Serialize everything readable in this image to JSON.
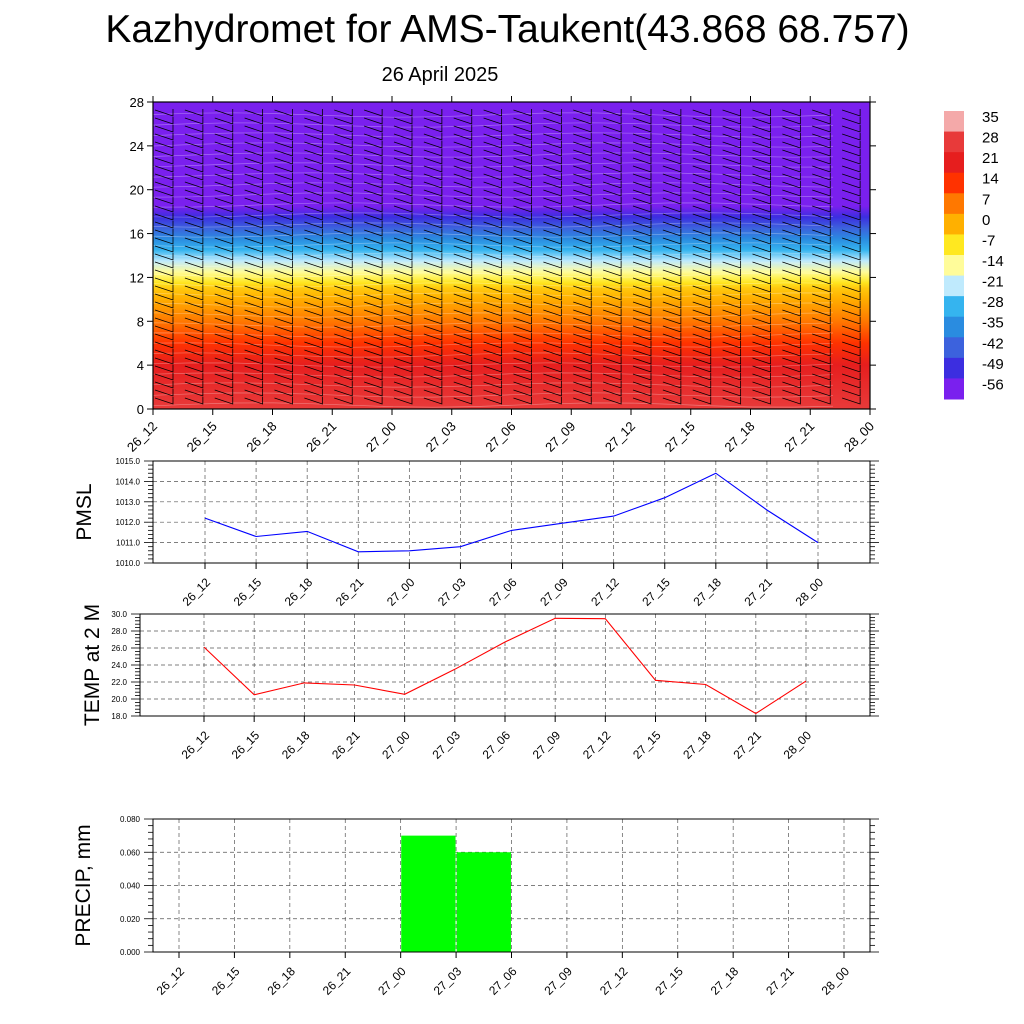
{
  "title": "Kazhydromet for AMS-Taukent(43.868 68.757)",
  "subtitle": "26 April 2025",
  "chart_data": [
    {
      "type": "heatmap",
      "description_of_axes": "time vs height",
      "x_tick_labels": [
        "26_12",
        "26_15",
        "26_18",
        "26_21",
        "27_00",
        "27_03",
        "27_06",
        "27_09",
        "27_12",
        "27_15",
        "27_18",
        "27_21",
        "28_00"
      ],
      "y_tick_labels": [
        "0",
        "4",
        "8",
        "12",
        "16",
        "20",
        "24",
        "28"
      ],
      "ylim": [
        0,
        28
      ],
      "colorbar_labels": [
        "35",
        "28",
        "21",
        "14",
        "7",
        "0",
        "-7",
        "-14",
        "-21",
        "-28",
        "-35",
        "-42",
        "-49",
        "-56"
      ],
      "colorbar_colors": [
        "#f4a9a9",
        "#e83a3a",
        "#e61e1e",
        "#ff3200",
        "#ff7800",
        "#ffb000",
        "#ffe820",
        "#fffc9a",
        "#bfeafd",
        "#35b4ef",
        "#2a8ce0",
        "#3c62dd",
        "#3c2ee0",
        "#7a20ee"
      ],
      "value_profile": [
        {
          "h": 0,
          "v": 28
        },
        {
          "h": 4,
          "v": 21
        },
        {
          "h": 8,
          "v": 7
        },
        {
          "h": 11,
          "v": -3
        },
        {
          "h": 12.5,
          "v": -14
        },
        {
          "h": 14.5,
          "v": -28
        },
        {
          "h": 16.5,
          "v": -42
        },
        {
          "h": 18.5,
          "v": -56
        },
        {
          "h": 21,
          "v": -56
        },
        {
          "h": 23,
          "v": -56
        },
        {
          "h": 28,
          "v": -60
        }
      ]
    },
    {
      "type": "line",
      "ylabel": "PMSL",
      "categories": [
        "26_12",
        "26_15",
        "26_18",
        "26_21",
        "27_00",
        "27_03",
        "27_06",
        "27_09",
        "27_12",
        "27_15",
        "27_18",
        "27_21",
        "28_00"
      ],
      "values": [
        1012.2,
        1011.3,
        1011.55,
        1010.55,
        1010.6,
        1010.8,
        1011.6,
        1011.95,
        1012.3,
        1013.2,
        1014.4,
        1012.6,
        1011.0
      ],
      "ylim": [
        1010.0,
        1015.0
      ],
      "y_tick_labels": [
        "1010.0",
        "1011.0",
        "1012.0",
        "1013.0",
        "1014.0",
        "1015.0"
      ],
      "color": "#0000ff",
      "grid": true
    },
    {
      "type": "line",
      "ylabel": "TEMP at 2 M",
      "categories": [
        "26_12",
        "26_15",
        "26_18",
        "26_21",
        "27_00",
        "27_03",
        "27_06",
        "27_09",
        "27_12",
        "27_15",
        "27_18",
        "27_21",
        "28_00"
      ],
      "values": [
        26.1,
        20.5,
        21.9,
        21.65,
        20.55,
        23.5,
        26.7,
        29.5,
        29.45,
        22.2,
        21.7,
        18.3,
        22.1
      ],
      "ylim": [
        18.0,
        30.0
      ],
      "y_tick_labels": [
        "18.0",
        "20.0",
        "22.0",
        "24.0",
        "26.0",
        "28.0",
        "30.0"
      ],
      "color": "#ff0000",
      "grid": true
    },
    {
      "type": "bar",
      "ylabel": "PRECIP, mm",
      "categories": [
        "26_12",
        "26_15",
        "26_18",
        "26_21",
        "27_00",
        "27_03",
        "27_06",
        "27_09",
        "27_12",
        "27_15",
        "27_18",
        "27_21",
        "28_00"
      ],
      "values": [
        0,
        0,
        0,
        0,
        0.07,
        0.06,
        0,
        0,
        0,
        0,
        0,
        0,
        0
      ],
      "ylim": [
        0.0,
        0.08
      ],
      "y_tick_labels": [
        "0.000",
        "0.020",
        "0.040",
        "0.060",
        "0.080"
      ],
      "color": "#00ff00",
      "grid": true
    }
  ]
}
